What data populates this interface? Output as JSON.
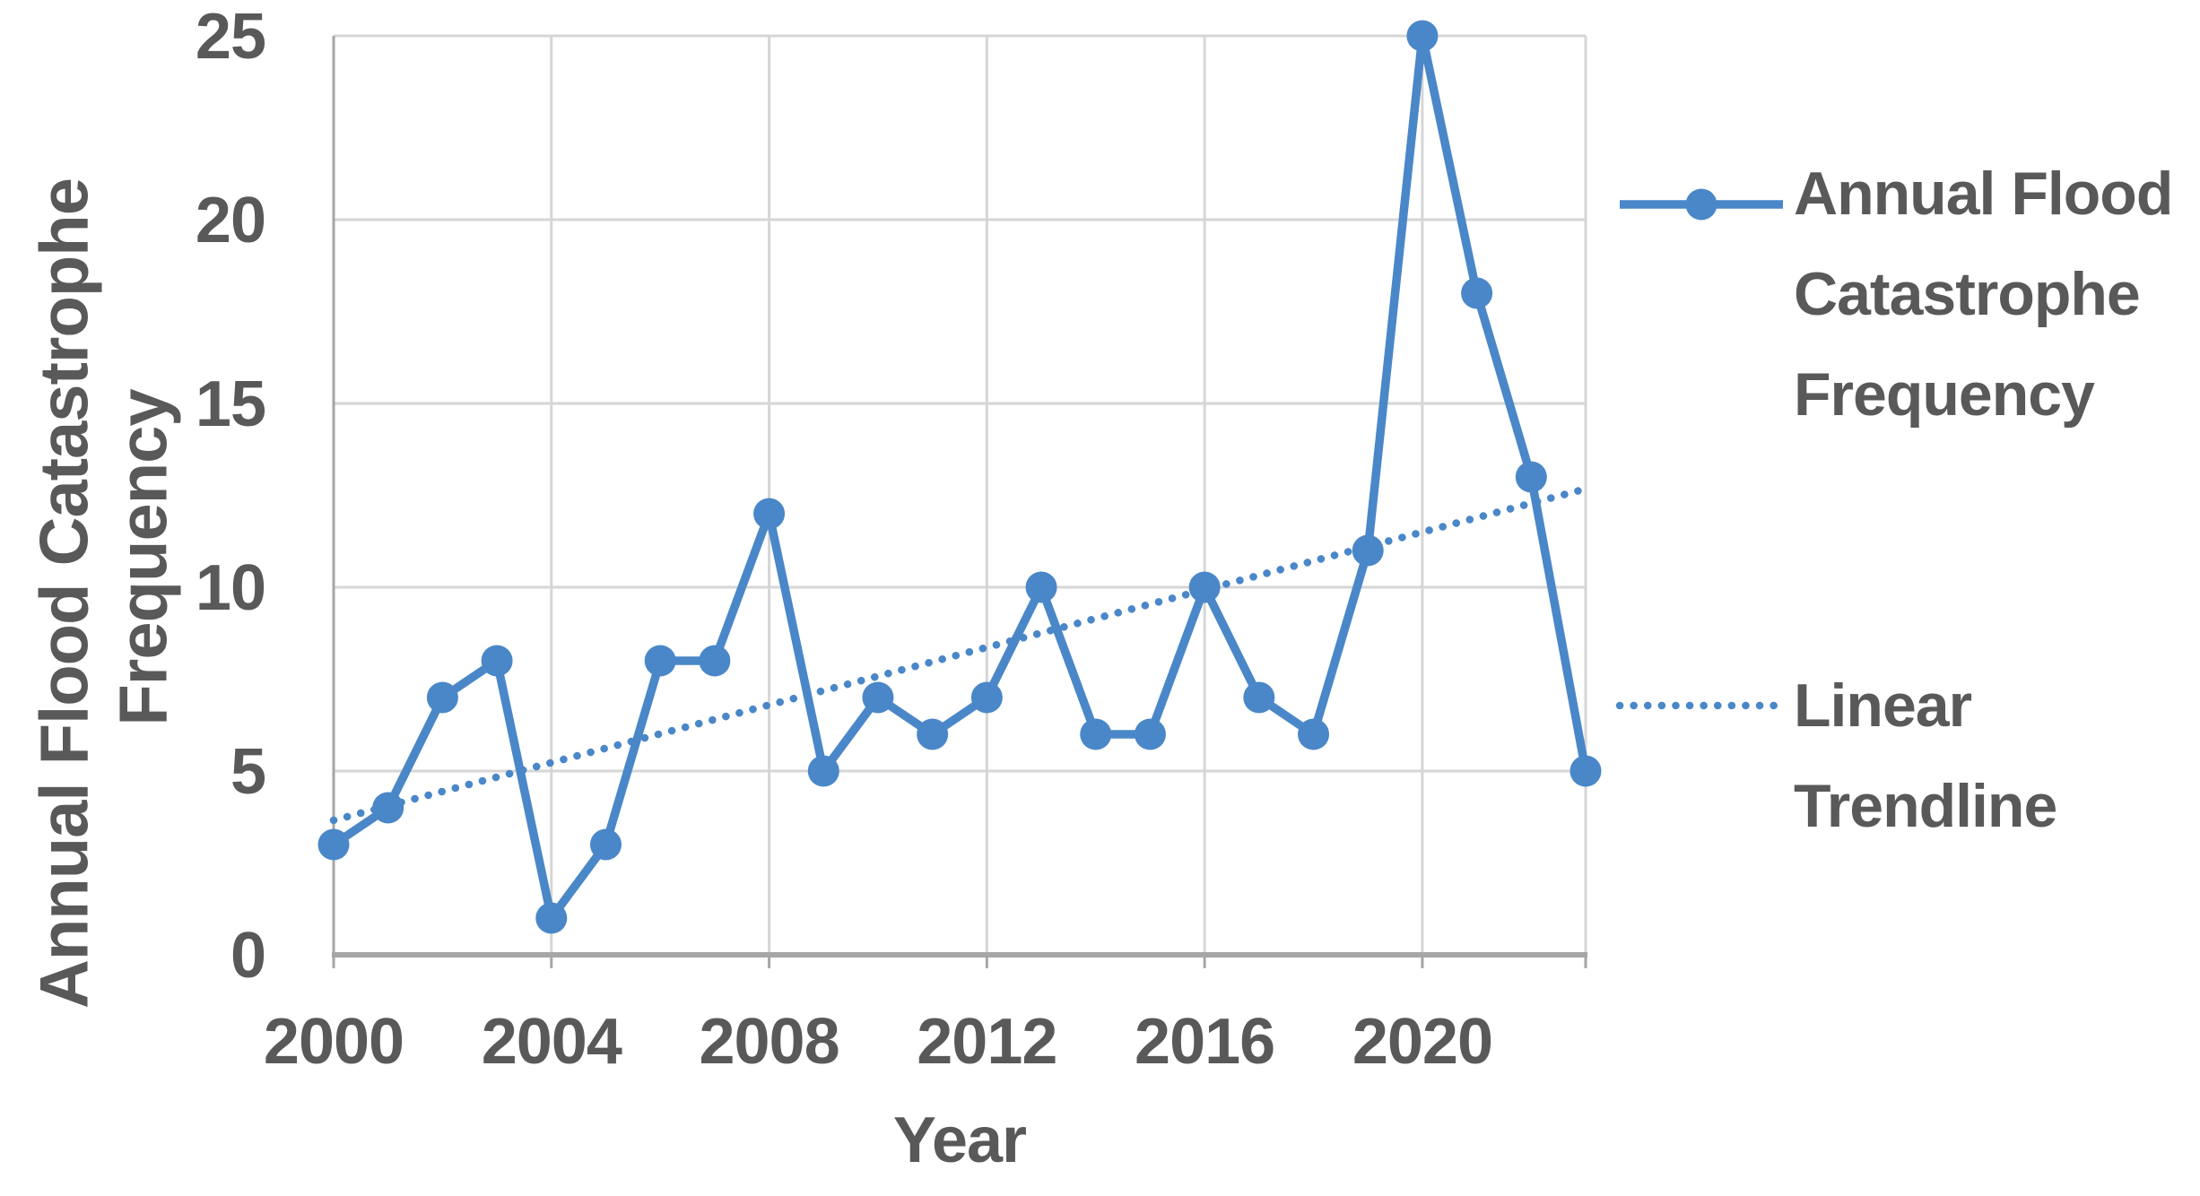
{
  "colors": {
    "series_blue": "#4a87c8",
    "gridline": "#d6d6d6",
    "axis_line": "#a6a6a6",
    "text": "#595959",
    "background": "#ffffff"
  },
  "y_axis": {
    "title_line1": "Annual Flood Catastrophe",
    "title_line2": "Frequency",
    "tick_labels": [
      "0",
      "5",
      "10",
      "15",
      "20",
      "25"
    ]
  },
  "x_axis": {
    "title": "Year",
    "tick_labels": [
      "2000",
      "2004",
      "2008",
      "2012",
      "2016",
      "2020"
    ]
  },
  "legend": {
    "entry1_line1": "Annual Flood",
    "entry1_line2": "Catastrophe",
    "entry1_line3": "Frequency",
    "entry2_line1": "Linear",
    "entry2_line2": "Trendline"
  },
  "chart_data": {
    "type": "line",
    "x": [
      2000,
      2001,
      2002,
      2003,
      2004,
      2005,
      2006,
      2007,
      2008,
      2009,
      2010,
      2011,
      2012,
      2013,
      2014,
      2015,
      2016,
      2017,
      2018,
      2019,
      2020,
      2021,
      2022,
      2023
    ],
    "series": [
      {
        "name": "Annual Flood Catastrophe Frequency",
        "values": [
          3,
          4,
          7,
          8,
          1,
          3,
          8,
          8,
          12,
          5,
          7,
          6,
          7,
          10,
          6,
          6,
          10,
          7,
          6,
          11,
          25,
          18,
          13,
          5
        ],
        "line": "solid",
        "marker": "circle"
      },
      {
        "name": "Linear Trendline",
        "line": "dotted",
        "fit": {
          "intercept": 3.66,
          "slope": 0.392
        }
      }
    ],
    "xlabel": "Year",
    "ylabel": "Annual Flood Catastrophe Frequency",
    "ylim": [
      0,
      25
    ],
    "y_ticks": [
      0,
      5,
      10,
      15,
      20,
      25
    ],
    "x_gridline_years": [
      2004,
      2008,
      2012,
      2016,
      2020
    ],
    "x_tick_label_years": [
      2000,
      2004,
      2008,
      2012,
      2016,
      2020
    ],
    "grid": true,
    "legend_position": "right"
  }
}
